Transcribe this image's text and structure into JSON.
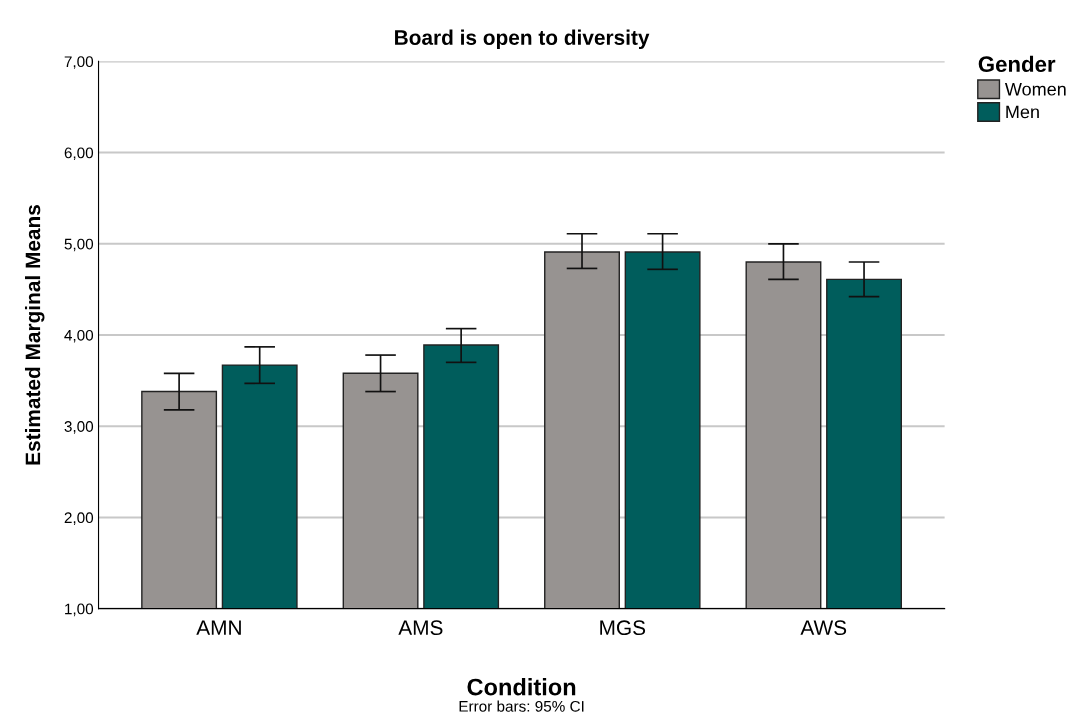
{
  "chart_data": {
    "type": "bar",
    "title": "Board is open to diversity",
    "xlabel": "Condition",
    "ylabel": "Estimated Marginal Means",
    "legend_title": "Gender",
    "categories": [
      "AMN",
      "AMS",
      "MGS",
      "AWS"
    ],
    "series": [
      {
        "name": "Women",
        "color": "#979391",
        "values": [
          3.38,
          3.58,
          4.91,
          4.8
        ],
        "errors": [
          [
            3.18,
            3.58
          ],
          [
            3.38,
            3.78
          ],
          [
            4.73,
            5.11
          ],
          [
            4.61,
            5.0
          ]
        ]
      },
      {
        "name": "Men",
        "color": "#005d5c",
        "values": [
          3.67,
          3.89,
          4.91,
          4.61
        ],
        "errors": [
          [
            3.47,
            3.87
          ],
          [
            3.7,
            4.07
          ],
          [
            4.72,
            5.11
          ],
          [
            4.42,
            4.8
          ]
        ]
      }
    ],
    "ylim": [
      1,
      7
    ],
    "yticks": [
      {
        "value": 1,
        "label": "1,00"
      },
      {
        "value": 2,
        "label": "2,00"
      },
      {
        "value": 3,
        "label": "3,00"
      },
      {
        "value": 4,
        "label": "4,00"
      },
      {
        "value": 5,
        "label": "5,00"
      },
      {
        "value": 6,
        "label": "6,00"
      },
      {
        "value": 7,
        "label": "7,00"
      }
    ],
    "grid": "y",
    "legend": "top right",
    "annotations": [
      "Error bars: 95% CI"
    ]
  }
}
